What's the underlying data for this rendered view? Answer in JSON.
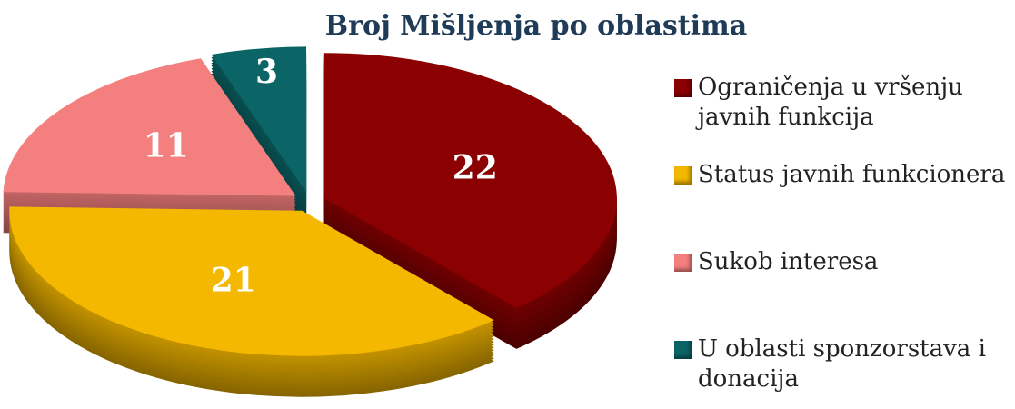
{
  "chart_data": {
    "type": "pie",
    "title": "Broj Mišljenja po oblastima",
    "categories": [
      "Ograničenja u vršenju javnih funkcija",
      "Status javnih funkcionera",
      "Sukob interesa",
      "U oblasti sponzorstava i donacija"
    ],
    "values": [
      22,
      21,
      11,
      3
    ],
    "colors": [
      "#8b0000",
      "#f5b800",
      "#f47f7f",
      "#0b6466"
    ],
    "legend": "right"
  }
}
